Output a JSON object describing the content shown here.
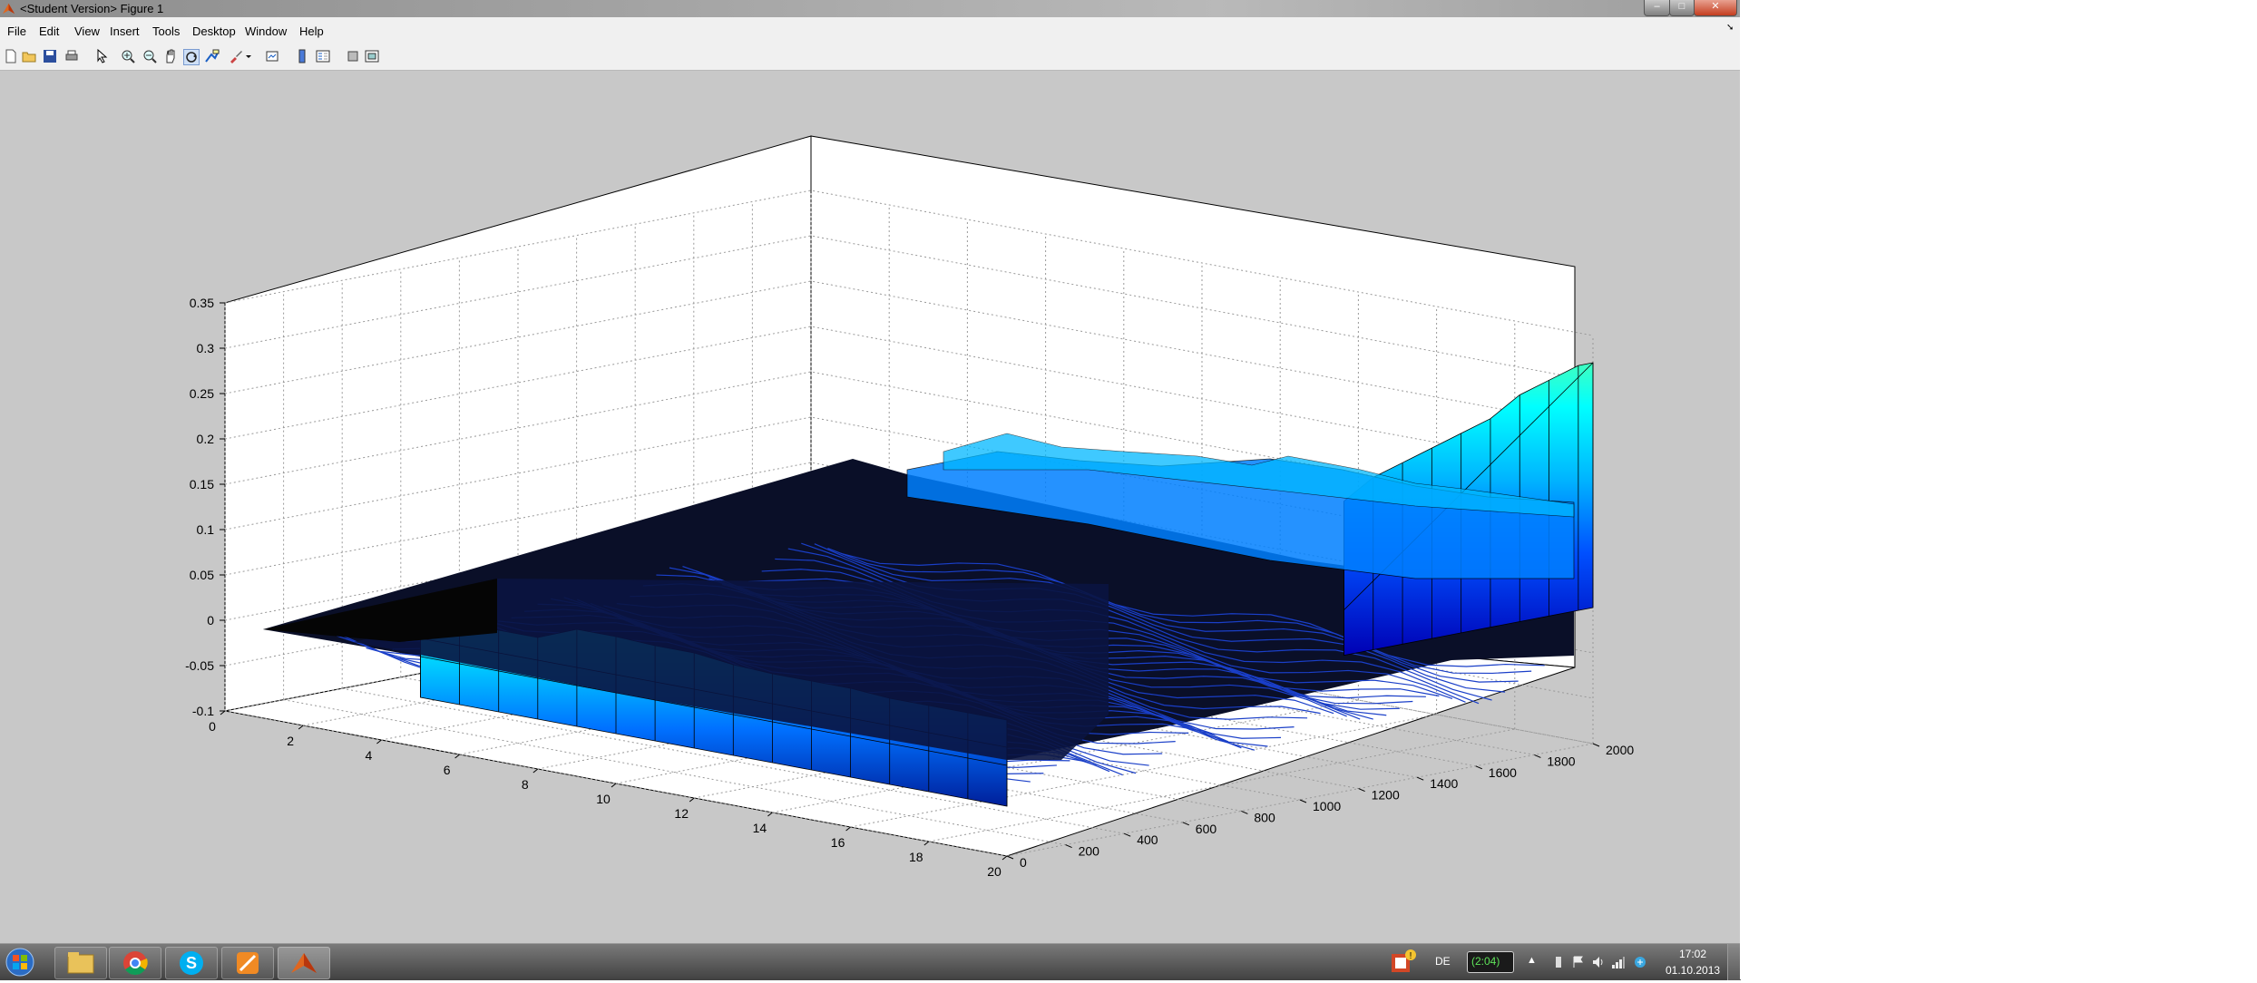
{
  "window": {
    "title": "<Student Version> Figure 1",
    "controls": {
      "minimize": "–",
      "maximize": "□",
      "close": "✕"
    }
  },
  "menubar": {
    "items": [
      {
        "label": "File"
      },
      {
        "label": "Edit"
      },
      {
        "label": "View"
      },
      {
        "label": "Insert"
      },
      {
        "label": "Tools"
      },
      {
        "label": "Desktop"
      },
      {
        "label": "Window"
      },
      {
        "label": "Help"
      }
    ]
  },
  "toolbar": {
    "buttons": [
      {
        "name": "new-figure-icon"
      },
      {
        "name": "open-file-icon"
      },
      {
        "name": "save-icon"
      },
      {
        "name": "print-icon"
      },
      {
        "name": "edit-plot-icon"
      },
      {
        "name": "zoom-in-icon"
      },
      {
        "name": "zoom-out-icon"
      },
      {
        "name": "pan-icon"
      },
      {
        "name": "rotate-3d-icon",
        "active": true
      },
      {
        "name": "data-cursor-icon"
      },
      {
        "name": "brush-icon"
      },
      {
        "name": "link-plot-icon"
      },
      {
        "name": "insert-colorbar-icon"
      },
      {
        "name": "insert-legend-icon"
      },
      {
        "name": "hide-plot-tools-icon"
      },
      {
        "name": "show-plot-tools-icon"
      }
    ]
  },
  "chart_data": {
    "type": "surface",
    "title": "",
    "xlabel": "",
    "ylabel": "",
    "zlabel": "",
    "xlim": [
      0,
      20
    ],
    "ylim": [
      0,
      2000
    ],
    "zlim": [
      -0.1,
      0.35
    ],
    "x_ticks": [
      "0",
      "2",
      "4",
      "6",
      "8",
      "10",
      "12",
      "14",
      "16",
      "18",
      "20"
    ],
    "y_ticks": [
      "0",
      "200",
      "400",
      "600",
      "800",
      "1000",
      "1200",
      "1400",
      "1600",
      "1800",
      "2000"
    ],
    "z_ticks": [
      "-0.1",
      "-0.05",
      "0",
      "0.05",
      "0.1",
      "0.15",
      "0.2",
      "0.25",
      "0.3",
      "0.35"
    ],
    "grid": true,
    "colormap": "jet",
    "front_ridge": {
      "description_at_y": 0,
      "x": [
        5,
        6,
        7,
        8,
        9,
        10,
        11,
        12,
        13,
        14,
        15,
        16,
        17,
        18,
        19,
        20
      ],
      "z": [
        0.047,
        0.047,
        0.045,
        0.045,
        0.062,
        0.062,
        0.06,
        0.06,
        0.055,
        0.053,
        0.053,
        0.053,
        0.05,
        0.05,
        0.05,
        0.05
      ]
    },
    "back_wall": {
      "description_at_x": 20,
      "y": [
        1150,
        1250,
        1350,
        1450,
        1550,
        1650,
        1750,
        1850,
        1950,
        2000
      ],
      "z": [
        0.22,
        0.24,
        0.25,
        0.26,
        0.27,
        0.28,
        0.3,
        0.31,
        0.32,
        0.32
      ]
    },
    "colors": {
      "low": "#0000b4",
      "mid_low": "#0050ff",
      "mid": "#00b4ff",
      "high": "#00ffff",
      "top": "#40ffc0"
    }
  },
  "taskbar": {
    "apps": [
      {
        "name": "start-button"
      },
      {
        "name": "explorer-icon"
      },
      {
        "name": "chrome-icon"
      },
      {
        "name": "skype-icon"
      },
      {
        "name": "app-icon"
      },
      {
        "name": "matlab-icon"
      }
    ],
    "language": "DE",
    "battery": "(2:04)",
    "clock": {
      "time": "17:02",
      "date": "01.10.2013"
    }
  }
}
